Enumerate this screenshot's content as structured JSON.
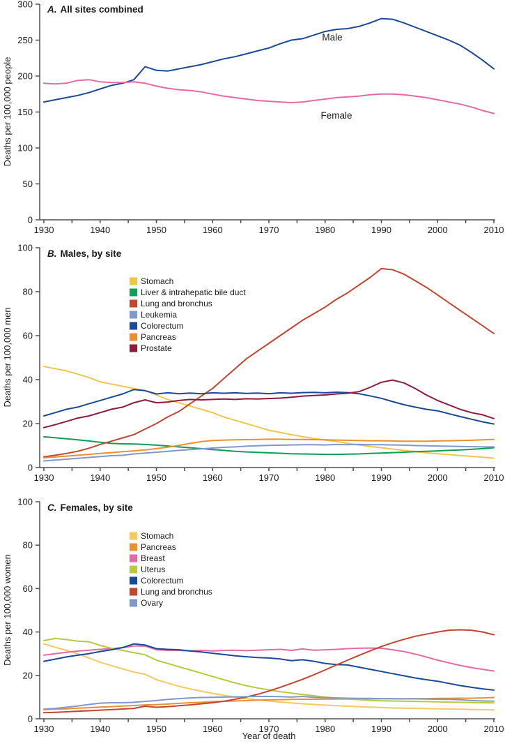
{
  "figure": {
    "xlabel": "Year of death",
    "colors": {
      "axis": "#4d4d4d",
      "text": "#1a1a1a",
      "background": "#ffffff"
    }
  },
  "chart_data": [
    {
      "type": "line",
      "panel": "A",
      "title_letter": "A.",
      "title_text": "All sites combined",
      "ylabel": "Deaths per 100,000 people",
      "ylim": [
        0,
        300
      ],
      "yticks": [
        0,
        50,
        100,
        150,
        200,
        250,
        300
      ],
      "xlim": [
        1930,
        2010
      ],
      "xticks": [
        1930,
        1940,
        1950,
        1960,
        1970,
        1980,
        1990,
        2000,
        2010
      ],
      "xtick_minor_step": 5,
      "grid": false,
      "show_legend": false,
      "years": [
        1930,
        1932,
        1934,
        1936,
        1938,
        1940,
        1942,
        1944,
        1946,
        1948,
        1950,
        1952,
        1954,
        1956,
        1958,
        1960,
        1962,
        1964,
        1966,
        1968,
        1970,
        1972,
        1974,
        1976,
        1978,
        1980,
        1982,
        1984,
        1986,
        1988,
        1990,
        1992,
        1994,
        1996,
        1998,
        2000,
        2002,
        2004,
        2006,
        2008,
        2010
      ],
      "series": [
        {
          "name": "Male",
          "color": "#1a4a97",
          "annotation": {
            "label": "Male"
          },
          "values": [
            164,
            167,
            170,
            173,
            177,
            182,
            187,
            190,
            195,
            213,
            208,
            207,
            210,
            213,
            216,
            220,
            224,
            227,
            231,
            235,
            239,
            245,
            250,
            252,
            257,
            262,
            265,
            266,
            269,
            274,
            280,
            279,
            274,
            268,
            262,
            256,
            250,
            243,
            233,
            222,
            210
          ]
        },
        {
          "name": "Female",
          "color": "#e36ba3",
          "annotation": {
            "label": "Female"
          },
          "values": [
            190,
            189,
            190,
            194,
            195,
            192,
            191,
            191,
            192,
            190,
            186,
            183,
            181,
            180,
            178,
            175,
            172,
            170,
            168,
            166,
            165,
            164,
            163,
            164,
            166,
            168,
            170,
            171,
            172,
            174,
            175,
            175,
            174,
            172,
            170,
            167,
            164,
            161,
            157,
            152,
            148
          ]
        }
      ]
    },
    {
      "type": "line",
      "panel": "B",
      "title_letter": "B.",
      "title_text": "Males, by site",
      "ylabel": "Deaths per 100,000 men",
      "ylim": [
        0,
        100
      ],
      "yticks": [
        0,
        20,
        40,
        60,
        80,
        100
      ],
      "xlim": [
        1930,
        2010
      ],
      "xticks": [
        1930,
        1940,
        1950,
        1960,
        1970,
        1980,
        1990,
        2000,
        2010
      ],
      "xtick_minor_step": 5,
      "grid": false,
      "show_legend": true,
      "legend_position": "upper-left-inside",
      "years": [
        1930,
        1932,
        1934,
        1936,
        1938,
        1940,
        1942,
        1944,
        1946,
        1948,
        1950,
        1952,
        1954,
        1956,
        1958,
        1960,
        1962,
        1964,
        1966,
        1968,
        1970,
        1972,
        1974,
        1976,
        1978,
        1980,
        1982,
        1984,
        1986,
        1988,
        1990,
        1992,
        1994,
        1996,
        1998,
        2000,
        2002,
        2004,
        2006,
        2008,
        2010
      ],
      "series": [
        {
          "name": "Stomach",
          "color": "#f0c64a",
          "values": [
            46,
            45,
            44,
            42.5,
            41,
            39,
            38,
            37,
            36,
            35,
            33,
            31,
            29.5,
            28,
            26.5,
            25,
            23,
            21.5,
            20,
            18.5,
            17,
            16,
            15,
            14,
            13.2,
            12.5,
            11.8,
            11,
            10.3,
            9.6,
            9,
            8.4,
            7.8,
            7.2,
            6.7,
            6.3,
            5.9,
            5.5,
            5.1,
            4.7,
            4.3
          ]
        },
        {
          "name": "Liver & intrahepatic bile duct",
          "color": "#0f9d57",
          "values": [
            14,
            13.6,
            13.1,
            12.6,
            12.1,
            11.5,
            11,
            10.8,
            10.7,
            10.5,
            10.2,
            9.8,
            9.4,
            9,
            8.6,
            8.2,
            7.8,
            7.4,
            7.1,
            6.9,
            6.7,
            6.5,
            6.3,
            6.2,
            6.1,
            6,
            6,
            6.1,
            6.2,
            6.4,
            6.6,
            6.8,
            7,
            7.2,
            7.4,
            7.6,
            7.8,
            8,
            8.3,
            8.6,
            9
          ]
        },
        {
          "name": "Lung and bronchus",
          "color": "#c2452f",
          "values": [
            4.9,
            5.6,
            6.4,
            7.4,
            8.8,
            10.5,
            12,
            13.5,
            15,
            17.5,
            20,
            23,
            25.5,
            29,
            32.5,
            36,
            40.5,
            45,
            49.5,
            53,
            56.5,
            60,
            63.5,
            67,
            70,
            73,
            76.5,
            79.5,
            83,
            86.5,
            90.5,
            90,
            88,
            85,
            82,
            78.5,
            75,
            71.5,
            68,
            64.5,
            61
          ]
        },
        {
          "name": "Leukemia",
          "color": "#8098cb",
          "values": [
            3,
            3.4,
            3.8,
            4.2,
            4.6,
            5,
            5.4,
            5.6,
            6.2,
            6.6,
            7,
            7.4,
            7.8,
            8.2,
            8.5,
            8.9,
            9.2,
            9.4,
            9.7,
            9.9,
            10.1,
            10.2,
            10.3,
            10.4,
            10.4,
            10.3,
            10.5,
            10.4,
            10.5,
            10.4,
            10.4,
            10.3,
            10.2,
            10,
            9.9,
            9.8,
            9.7,
            9.6,
            9.5,
            9.4,
            9.4
          ]
        },
        {
          "name": "Colorectum",
          "color": "#1a4a97",
          "values": [
            23.5,
            25,
            26.5,
            27.5,
            29,
            30.5,
            32,
            33.5,
            35.5,
            35,
            33.5,
            34,
            33.6,
            33.9,
            33.6,
            34,
            33.8,
            34,
            33.7,
            33.9,
            33.6,
            34,
            33.8,
            34.1,
            34.2,
            34,
            34.3,
            34.1,
            33.6,
            32.6,
            31.5,
            30,
            28.6,
            27.5,
            26.5,
            25.8,
            24.5,
            23.2,
            22,
            20.8,
            19.8
          ]
        },
        {
          "name": "Pancreas",
          "color": "#e9912f",
          "values": [
            4.4,
            4.8,
            5.2,
            5.6,
            6,
            6.4,
            6.8,
            7.2,
            7.6,
            8,
            8.6,
            9.3,
            10.1,
            11,
            11.8,
            12.3,
            12.5,
            12.6,
            12.7,
            12.8,
            12.9,
            12.9,
            12.8,
            12.8,
            12.7,
            12.6,
            12.5,
            12.4,
            12.3,
            12.2,
            12.2,
            12.1,
            12,
            12,
            12,
            12.1,
            12.2,
            12.3,
            12.4,
            12.6,
            12.8
          ]
        },
        {
          "name": "Prostate",
          "color": "#8e1a3c",
          "values": [
            18.2,
            19.5,
            21,
            22.5,
            23.5,
            25,
            26.5,
            27.5,
            29.5,
            30.8,
            29.5,
            29.8,
            30.5,
            31,
            30.8,
            31,
            31.2,
            31,
            31.3,
            31.2,
            31.4,
            31.6,
            32,
            32.5,
            32.8,
            33,
            33.5,
            33.8,
            34.5,
            36.5,
            38.8,
            39.8,
            38.5,
            36,
            33,
            30.5,
            28.5,
            26.5,
            25,
            24,
            22.3
          ]
        }
      ]
    },
    {
      "type": "line",
      "panel": "C",
      "title_letter": "C.",
      "title_text": "Females, by site",
      "ylabel": "Deaths per 100,000 women",
      "ylim": [
        0,
        100
      ],
      "yticks": [
        0,
        20,
        40,
        60,
        80,
        100
      ],
      "xlim": [
        1930,
        2010
      ],
      "xticks": [
        1930,
        1940,
        1950,
        1960,
        1970,
        1980,
        1990,
        2000,
        2010
      ],
      "xtick_minor_step": 5,
      "grid": false,
      "show_legend": true,
      "legend_position": "upper-left-inside",
      "years": [
        1930,
        1932,
        1934,
        1936,
        1938,
        1940,
        1942,
        1944,
        1946,
        1948,
        1950,
        1952,
        1954,
        1956,
        1958,
        1960,
        1962,
        1964,
        1966,
        1968,
        1970,
        1972,
        1974,
        1976,
        1978,
        1980,
        1982,
        1984,
        1986,
        1988,
        1990,
        1992,
        1994,
        1996,
        1998,
        2000,
        2002,
        2004,
        2006,
        2008,
        2010
      ],
      "series": [
        {
          "name": "Stomach",
          "color": "#f2ca5f",
          "values": [
            34.5,
            33,
            31.5,
            30,
            28,
            26,
            24.5,
            23,
            21.5,
            20.5,
            18,
            16.5,
            15,
            13.8,
            12.7,
            11.7,
            10.8,
            10,
            9.3,
            8.7,
            8.2,
            7.7,
            7.3,
            6.9,
            6.6,
            6.3,
            6,
            5.8,
            5.6,
            5.4,
            5.2,
            5,
            4.9,
            4.8,
            4.7,
            4.6,
            4.5,
            4.4,
            4.3,
            4.2,
            4.1
          ]
        },
        {
          "name": "Pancreas",
          "color": "#e9912f",
          "values": [
            4.2,
            4.4,
            4.6,
            4.9,
            5.1,
            5.4,
            5.6,
            5.9,
            6.1,
            6.4,
            6.5,
            6.8,
            7.1,
            7.4,
            7.6,
            7.9,
            8,
            8.2,
            8.4,
            8.6,
            8.7,
            8.8,
            8.9,
            9,
            9,
            9.1,
            9.1,
            9.1,
            9.1,
            9.2,
            9.2,
            9.2,
            9.2,
            9.3,
            9.3,
            9.4,
            9.4,
            9.5,
            9.5,
            9.6,
            9.8
          ]
        },
        {
          "name": "Breast",
          "color": "#e36ba3",
          "values": [
            29.3,
            30,
            30.6,
            31.2,
            31.6,
            32,
            32.3,
            32.8,
            33.5,
            33.5,
            31.8,
            31.5,
            31.5,
            31.3,
            31.5,
            31.3,
            31.5,
            31.6,
            31.4,
            31.6,
            31.8,
            32,
            31.5,
            32.2,
            31.6,
            31.8,
            32,
            32.3,
            32.5,
            32.6,
            32.5,
            31.8,
            31,
            29.8,
            28.5,
            27,
            25.8,
            24.6,
            23.6,
            22.8,
            22
          ]
        },
        {
          "name": "Uterus",
          "color": "#b8ca3a",
          "values": [
            36,
            37,
            36.5,
            35.8,
            35.5,
            33.8,
            32.5,
            31.5,
            30.5,
            29.5,
            27,
            25.5,
            24,
            22.5,
            21,
            19.5,
            18,
            16.5,
            15.2,
            14.2,
            13.3,
            12.5,
            11.8,
            11.2,
            10.6,
            10,
            9.5,
            9.1,
            8.8,
            8.5,
            8.3,
            8.2,
            8.1,
            8,
            7.9,
            7.8,
            7.7,
            7.6,
            7.5,
            7.4,
            7.3
          ]
        },
        {
          "name": "Colorectum",
          "color": "#1a4a97",
          "values": [
            26.5,
            27.5,
            28.5,
            29.3,
            30,
            31,
            31.8,
            32.8,
            34.5,
            34,
            32.3,
            32,
            31.8,
            31.3,
            30.8,
            30.2,
            29.6,
            29,
            28.6,
            28.2,
            28,
            27.6,
            26.8,
            27.2,
            26.5,
            25.5,
            25,
            24.8,
            23.8,
            22.8,
            21.8,
            20.8,
            19.8,
            18.8,
            18,
            17.3,
            16.3,
            15.3,
            14.5,
            13.8,
            13.2
          ]
        },
        {
          "name": "Lung and bronchus",
          "color": "#c2452f",
          "values": [
            2.8,
            3,
            3.2,
            3.5,
            3.7,
            4,
            4.2,
            4.5,
            4.8,
            5.8,
            5.3,
            5.6,
            6,
            6.4,
            6.9,
            7.4,
            8.1,
            9,
            10,
            11.3,
            12.8,
            14.5,
            16.3,
            18.2,
            20.3,
            22.5,
            24.8,
            27,
            29.2,
            31.3,
            33.3,
            35,
            36.6,
            38,
            39,
            40,
            40.8,
            41,
            40.8,
            40,
            38.7
          ]
        },
        {
          "name": "Ovary",
          "color": "#8098cb",
          "values": [
            4.4,
            4.8,
            5.3,
            5.9,
            6.6,
            7.2,
            7.4,
            7.4,
            7.6,
            8,
            8.4,
            8.9,
            9.3,
            9.6,
            9.8,
            9.9,
            10,
            10.1,
            10.2,
            10.3,
            10.3,
            10.2,
            10,
            10.3,
            9.9,
            9.7,
            9.6,
            9.5,
            9.4,
            9.4,
            9.3,
            9.3,
            9.2,
            9.2,
            9.1,
            9,
            8.9,
            8.8,
            8.4,
            8.2,
            8.1
          ]
        }
      ]
    }
  ]
}
